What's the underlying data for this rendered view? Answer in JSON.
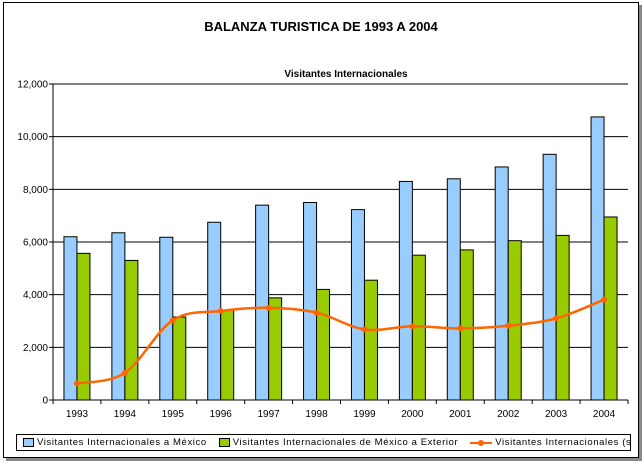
{
  "title": "BALANZA TURISTICA DE 1993 A 2004",
  "chart_data": {
    "type": "bar",
    "title": "Visitantes Internacionales",
    "categories": [
      "1993",
      "1994",
      "1995",
      "1996",
      "1997",
      "1998",
      "1999",
      "2000",
      "2001",
      "2002",
      "2003",
      "2004"
    ],
    "ylim": [
      0,
      12000
    ],
    "yticks": [
      "0",
      "2,000",
      "4,000",
      "6,000",
      "8,000",
      "10,000",
      "12,000"
    ],
    "ytick_values": [
      0,
      2000,
      4000,
      6000,
      8000,
      10000,
      12000
    ],
    "grid": true,
    "legend_position": "bottom",
    "series": [
      {
        "name": "Visitantes Internacionales a México",
        "type": "bar",
        "color": "#99ccff",
        "values": [
          6200,
          6350,
          6180,
          6750,
          7400,
          7500,
          7230,
          8300,
          8400,
          8850,
          9330,
          10750
        ]
      },
      {
        "name": "Visitantes Internacionales de México a Exterior",
        "type": "bar",
        "color": "#99cc00",
        "values": [
          5570,
          5300,
          3150,
          3400,
          3880,
          4200,
          4550,
          5500,
          5700,
          6050,
          6250,
          6950
        ]
      },
      {
        "name": "Visitantes Internacionales (saldo)",
        "type": "line",
        "color": "#ff6600",
        "values": [
          630,
          1030,
          3030,
          3380,
          3500,
          3320,
          2680,
          2800,
          2720,
          2820,
          3100,
          3810
        ]
      }
    ]
  }
}
